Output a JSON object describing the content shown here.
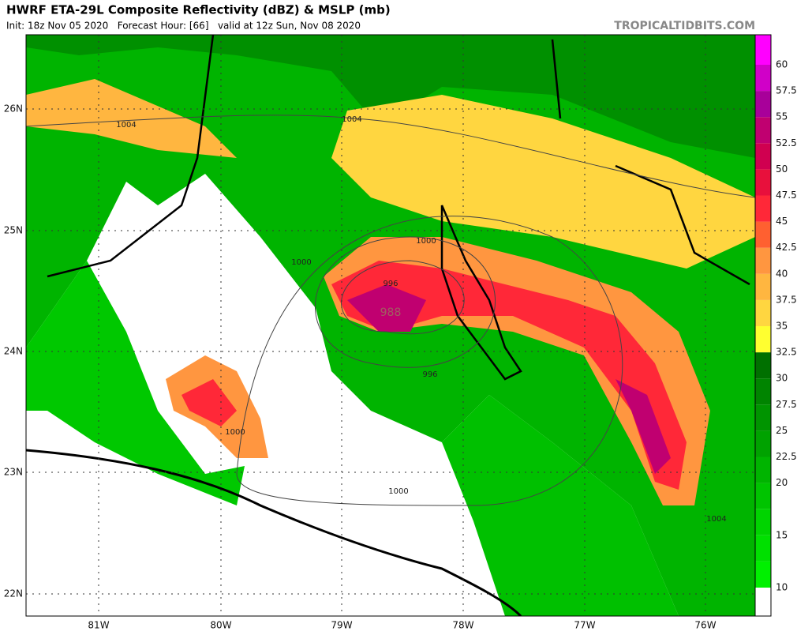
{
  "header": {
    "title": "HWRF ETA-29L Composite Reflectivity (dBZ) & MSLP (mb)",
    "subtitle": "Init: 18z Nov 05 2020   Forecast Hour: [66]   valid at 12z Sun, Nov 08 2020",
    "source": "TROPICALTIDBITS.COM"
  },
  "map": {
    "lat_labels": [
      "26N",
      "25N",
      "24N",
      "23N",
      "22N"
    ],
    "lon_labels": [
      "81W",
      "80W",
      "79W",
      "78W",
      "77W",
      "76W"
    ],
    "isobar_labels": [
      "1004",
      "1004",
      "1000",
      "1000",
      "996",
      "996",
      "988",
      "1000",
      "1000",
      "1004"
    ]
  },
  "colorbar": {
    "ticks": [
      10,
      12.5,
      15,
      17.5,
      20,
      22.5,
      25,
      27.5,
      30,
      32.5,
      35,
      37.5,
      40,
      42.5,
      45,
      47.5,
      50,
      52.5,
      55,
      57.5,
      60
    ],
    "labels": [
      10,
      15,
      20,
      22.5,
      25,
      27.5,
      30,
      32.5,
      35,
      37.5,
      40,
      42.5,
      45,
      47.5,
      50,
      52.5,
      55,
      57.5,
      60
    ],
    "colors": [
      "#00f000",
      "#00e000",
      "#00d400",
      "#00c400",
      "#00b400",
      "#00a200",
      "#009400",
      "#008400",
      "#007000",
      "#ffff30",
      "#ffd640",
      "#ffb640",
      "#ff9640",
      "#ff6030",
      "#ff2838",
      "#e8103c",
      "#d00050",
      "#c00070",
      "#a8009a",
      "#d000c8",
      "#ff00ff"
    ]
  }
}
